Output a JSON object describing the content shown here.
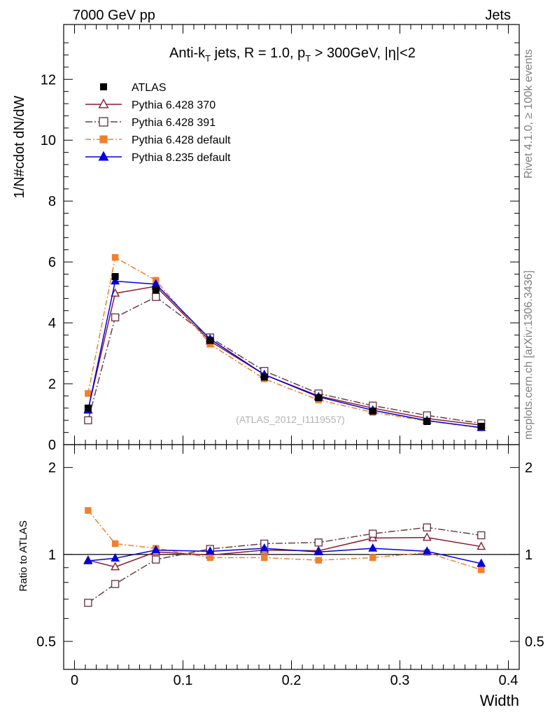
{
  "header": {
    "energy_label": "7000 GeV pp",
    "category_label": "Jets"
  },
  "side": {
    "rivet_label": "Rivet 4.1.0, ≥ 100k events",
    "mcplots_label": "mcplots.cern.ch [arXiv:1306.3436]"
  },
  "chart_data": {
    "type": "scatter",
    "title": "Anti-k_T jets, R = 1.0, p_T > 300GeV, |η|<2",
    "watermark": "(ATLAS_2012_I1119557)",
    "xlabel": "Width",
    "ylabel": "1/N#cdot dN/dW",
    "ratio_ylabel": "Ratio to ATLAS",
    "xlim": [
      -0.01,
      0.41
    ],
    "ylim": [
      0,
      13.8
    ],
    "ratio_ylim": [
      0.4,
      2.4
    ],
    "x_ticks": [
      "0",
      "0.1",
      "0.2",
      "0.3",
      "0.4"
    ],
    "y_ticks": [
      "0",
      "2",
      "4",
      "6",
      "8",
      "10",
      "12"
    ],
    "ratio_ticks": [
      "0.5",
      "1",
      "2"
    ],
    "x": [
      0.0125,
      0.0375,
      0.075,
      0.125,
      0.175,
      0.225,
      0.275,
      0.325,
      0.375
    ],
    "data": {
      "name": "ATLAS",
      "values": [
        1.2,
        5.52,
        5.08,
        3.42,
        2.22,
        1.54,
        1.1,
        0.76,
        0.6
      ]
    },
    "series": [
      {
        "name": "Pythia 6.428 370",
        "color": "#8b1a2b",
        "dash": "",
        "marker": "triangle-open",
        "values": [
          1.15,
          4.97,
          5.2,
          3.4,
          2.3,
          1.6,
          1.2,
          0.86,
          0.64
        ],
        "ratio": [
          0.955,
          0.905,
          1.02,
          0.995,
          1.035,
          1.03,
          1.14,
          1.145,
          1.065
        ]
      },
      {
        "name": "Pythia 6.428 391",
        "color": "#6a3d4b",
        "dash": "10,3,2,3",
        "marker": "square-open",
        "values": [
          0.8,
          4.18,
          4.85,
          3.52,
          2.42,
          1.68,
          1.28,
          0.96,
          0.7
        ],
        "ratio": [
          0.68,
          0.79,
          0.96,
          1.045,
          1.09,
          1.1,
          1.18,
          1.24,
          1.165
        ]
      },
      {
        "name": "Pythia 6.428 default",
        "color": "#f08030",
        "dash": "8,3,2,3",
        "marker": "square-filled",
        "values": [
          1.68,
          6.15,
          5.4,
          3.3,
          2.16,
          1.47,
          1.06,
          0.78,
          0.55
        ],
        "ratio": [
          1.42,
          1.09,
          1.05,
          0.975,
          0.975,
          0.955,
          0.975,
          1.015,
          0.885
        ]
      },
      {
        "name": "Pythia 8.235 default",
        "color": "#0000dd",
        "dash": "",
        "marker": "triangle-filled",
        "values": [
          1.13,
          5.37,
          5.27,
          3.47,
          2.3,
          1.57,
          1.13,
          0.79,
          0.56
        ],
        "ratio": [
          0.95,
          0.97,
          1.035,
          1.025,
          1.05,
          1.02,
          1.05,
          1.025,
          0.93
        ]
      }
    ]
  }
}
